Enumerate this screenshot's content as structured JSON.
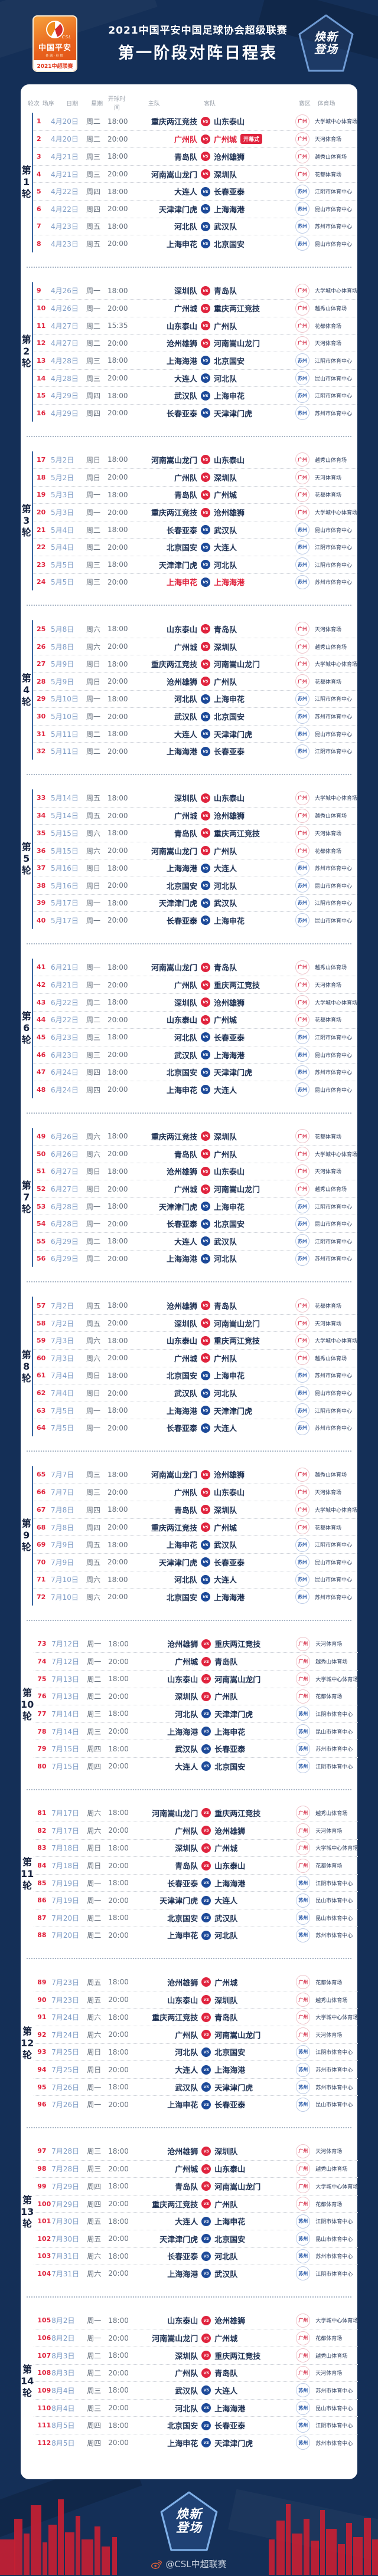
{
  "header": {
    "title_line1": "2021中国平安中国足球协会超级联赛",
    "title_line2": "第一阶段对阵日程表",
    "logo": {
      "csl": "CSL",
      "name": "中国平安",
      "tagline": "金融·科技",
      "strip": "2021中超联赛"
    },
    "badge_line1": "焕新",
    "badge_line2": "登场"
  },
  "table": {
    "columns": [
      "轮次",
      "场序",
      "日期",
      "星期",
      "开球时间",
      "主队",
      "客队",
      "赛区",
      "体育场"
    ],
    "round_prefix": "第",
    "round_suffix": "轮",
    "opening_badge": "开幕式",
    "vs_label": "VS",
    "zone_colors": {
      "广州": "#e0243e",
      "苏州": "#1d4a99"
    }
  },
  "match_fields": [
    "no",
    "date",
    "week",
    "time",
    "home",
    "away",
    "zone",
    "stadium",
    "flag"
  ],
  "rounds": [
    {
      "num": "1",
      "matches": [
        [
          "1",
          "4月20日",
          "周二",
          "18:00",
          "重庆两江竞技",
          "山东泰山",
          "广州",
          "大学城中心体育场"
        ],
        [
          "2",
          "4月20日",
          "周二",
          "20:00",
          "广州队",
          "广州城",
          "广州",
          "天河体育场",
          "open"
        ],
        [
          "3",
          "4月21日",
          "周三",
          "18:00",
          "青岛队",
          "沧州雄狮",
          "广州",
          "越秀山体育场"
        ],
        [
          "4",
          "4月21日",
          "周三",
          "20:00",
          "河南嵩山龙门",
          "深圳队",
          "广州",
          "花都体育场"
        ],
        [
          "5",
          "4月22日",
          "周四",
          "18:00",
          "大连人",
          "长春亚泰",
          "苏州",
          "江阴市体育中心"
        ],
        [
          "6",
          "4月22日",
          "周四",
          "20:00",
          "天津津门虎",
          "上海海港",
          "苏州",
          "昆山市体育中心"
        ],
        [
          "7",
          "4月23日",
          "周五",
          "18:00",
          "河北队",
          "武汉队",
          "苏州",
          "苏州市体育中心"
        ],
        [
          "8",
          "4月23日",
          "周五",
          "20:00",
          "上海申花",
          "北京国安",
          "苏州",
          "昆山市体育中心"
        ]
      ]
    },
    {
      "num": "2",
      "matches": [
        [
          "9",
          "4月26日",
          "周一",
          "18:00",
          "深圳队",
          "青岛队",
          "广州",
          "大学城中心体育场"
        ],
        [
          "10",
          "4月26日",
          "周一",
          "20:00",
          "广州城",
          "重庆两江竞技",
          "广州",
          "越秀山体育场"
        ],
        [
          "11",
          "4月27日",
          "周二",
          "15:35",
          "山东泰山",
          "广州队",
          "广州",
          "花都体育场"
        ],
        [
          "12",
          "4月27日",
          "周二",
          "20:00",
          "沧州雄狮",
          "河南嵩山龙门",
          "广州",
          "天河体育场"
        ],
        [
          "13",
          "4月28日",
          "周三",
          "18:00",
          "上海海港",
          "北京国安",
          "苏州",
          "江阴市体育中心"
        ],
        [
          "14",
          "4月28日",
          "周三",
          "20:00",
          "大连人",
          "河北队",
          "苏州",
          "昆山市体育中心"
        ],
        [
          "15",
          "4月29日",
          "周四",
          "18:00",
          "武汉队",
          "上海申花",
          "苏州",
          "江阴市体育中心"
        ],
        [
          "16",
          "4月29日",
          "周四",
          "20:00",
          "长春亚泰",
          "天津津门虎",
          "苏州",
          "苏州市体育中心"
        ]
      ]
    },
    {
      "num": "3",
      "matches": [
        [
          "17",
          "5月2日",
          "周日",
          "18:00",
          "河南嵩山龙门",
          "山东泰山",
          "广州",
          "越秀山体育场"
        ],
        [
          "18",
          "5月2日",
          "周日",
          "20:00",
          "广州队",
          "深圳队",
          "广州",
          "天河体育场"
        ],
        [
          "19",
          "5月3日",
          "周一",
          "18:00",
          "青岛队",
          "广州城",
          "广州",
          "花都体育场"
        ],
        [
          "20",
          "5月3日",
          "周一",
          "20:00",
          "重庆两江竞技",
          "沧州雄狮",
          "广州",
          "大学城中心体育场"
        ],
        [
          "21",
          "5月4日",
          "周二",
          "18:00",
          "长春亚泰",
          "武汉队",
          "苏州",
          "昆山市体育中心"
        ],
        [
          "22",
          "5月4日",
          "周二",
          "20:00",
          "北京国安",
          "大连人",
          "苏州",
          "江阴市体育中心"
        ],
        [
          "23",
          "5月5日",
          "周三",
          "18:00",
          "天津津门虎",
          "河北队",
          "苏州",
          "江阴市体育中心"
        ],
        [
          "24",
          "5月5日",
          "周三",
          "20:00",
          "上海申花",
          "上海海港",
          "苏州",
          "苏州市体育中心",
          "hl"
        ]
      ]
    },
    {
      "num": "4",
      "matches": [
        [
          "25",
          "5月8日",
          "周六",
          "18:00",
          "山东泰山",
          "青岛队",
          "广州",
          "天河体育场"
        ],
        [
          "26",
          "5月8日",
          "周六",
          "20:00",
          "广州城",
          "深圳队",
          "广州",
          "越秀山体育场"
        ],
        [
          "27",
          "5月9日",
          "周日",
          "18:00",
          "重庆两江竞技",
          "河南嵩山龙门",
          "广州",
          "大学城中心体育场"
        ],
        [
          "28",
          "5月9日",
          "周日",
          "20:00",
          "沧州雄狮",
          "广州队",
          "广州",
          "花都体育场"
        ],
        [
          "29",
          "5月10日",
          "周一",
          "18:00",
          "河北队",
          "上海申花",
          "苏州",
          "江阴市体育中心"
        ],
        [
          "30",
          "5月10日",
          "周一",
          "20:00",
          "武汉队",
          "北京国安",
          "苏州",
          "苏州市体育中心"
        ],
        [
          "31",
          "5月11日",
          "周二",
          "18:00",
          "大连人",
          "天津津门虎",
          "苏州",
          "昆山市体育中心"
        ],
        [
          "32",
          "5月11日",
          "周二",
          "20:00",
          "上海海港",
          "长春亚泰",
          "苏州",
          "江阴市体育中心"
        ]
      ]
    },
    {
      "num": "5",
      "matches": [
        [
          "33",
          "5月14日",
          "周五",
          "18:00",
          "深圳队",
          "山东泰山",
          "广州",
          "大学城中心体育场"
        ],
        [
          "34",
          "5月14日",
          "周五",
          "20:00",
          "广州城",
          "沧州雄狮",
          "广州",
          "越秀山体育场"
        ],
        [
          "35",
          "5月15日",
          "周六",
          "18:00",
          "青岛队",
          "重庆两江竞技",
          "广州",
          "天河体育场"
        ],
        [
          "36",
          "5月15日",
          "周六",
          "20:00",
          "河南嵩山龙门",
          "广州队",
          "广州",
          "花都体育场"
        ],
        [
          "37",
          "5月16日",
          "周日",
          "18:00",
          "上海海港",
          "大连人",
          "苏州",
          "苏州市体育中心"
        ],
        [
          "38",
          "5月16日",
          "周日",
          "20:00",
          "北京国安",
          "河北队",
          "苏州",
          "昆山市体育中心"
        ],
        [
          "39",
          "5月17日",
          "周一",
          "18:00",
          "天津津门虎",
          "武汉队",
          "苏州",
          "江阴市体育中心"
        ],
        [
          "40",
          "5月17日",
          "周一",
          "20:00",
          "长春亚泰",
          "上海申花",
          "苏州",
          "昆山市体育中心"
        ]
      ]
    },
    {
      "num": "6",
      "matches": [
        [
          "41",
          "6月21日",
          "周一",
          "18:00",
          "河南嵩山龙门",
          "青岛队",
          "广州",
          "越秀山体育场"
        ],
        [
          "42",
          "6月21日",
          "周一",
          "20:00",
          "广州队",
          "重庆两江竞技",
          "广州",
          "天河体育场"
        ],
        [
          "43",
          "6月22日",
          "周二",
          "18:00",
          "深圳队",
          "沧州雄狮",
          "广州",
          "大学城中心体育场"
        ],
        [
          "44",
          "6月22日",
          "周二",
          "20:00",
          "山东泰山",
          "广州城",
          "广州",
          "花都体育场"
        ],
        [
          "45",
          "6月23日",
          "周三",
          "18:00",
          "河北队",
          "长春亚泰",
          "苏州",
          "江阴市体育中心"
        ],
        [
          "46",
          "6月23日",
          "周三",
          "20:00",
          "武汉队",
          "上海海港",
          "苏州",
          "昆山市体育中心"
        ],
        [
          "47",
          "6月24日",
          "周四",
          "18:00",
          "北京国安",
          "天津津门虎",
          "苏州",
          "苏州市体育中心"
        ],
        [
          "48",
          "6月24日",
          "周四",
          "20:00",
          "上海申花",
          "大连人",
          "苏州",
          "昆山市体育中心"
        ]
      ]
    },
    {
      "num": "7",
      "matches": [
        [
          "49",
          "6月26日",
          "周六",
          "18:00",
          "重庆两江竞技",
          "深圳队",
          "广州",
          "花都体育场"
        ],
        [
          "50",
          "6月26日",
          "周六",
          "20:00",
          "青岛队",
          "广州队",
          "广州",
          "大学城中心体育场"
        ],
        [
          "51",
          "6月27日",
          "周日",
          "18:00",
          "沧州雄狮",
          "山东泰山",
          "广州",
          "天河体育场"
        ],
        [
          "52",
          "6月27日",
          "周日",
          "20:00",
          "广州城",
          "河南嵩山龙门",
          "广州",
          "越秀山体育场"
        ],
        [
          "53",
          "6月28日",
          "周一",
          "18:00",
          "天津津门虎",
          "上海申花",
          "苏州",
          "江阴市体育中心"
        ],
        [
          "54",
          "6月28日",
          "周一",
          "20:00",
          "长春亚泰",
          "北京国安",
          "苏州",
          "昆山市体育中心"
        ],
        [
          "55",
          "6月29日",
          "周二",
          "18:00",
          "大连人",
          "武汉队",
          "苏州",
          "江阴市体育中心"
        ],
        [
          "56",
          "6月29日",
          "周二",
          "20:00",
          "上海海港",
          "河北队",
          "苏州",
          "苏州市体育中心"
        ]
      ]
    },
    {
      "num": "8",
      "matches": [
        [
          "57",
          "7月2日",
          "周五",
          "18:00",
          "沧州雄狮",
          "青岛队",
          "广州",
          "花都体育场"
        ],
        [
          "58",
          "7月2日",
          "周五",
          "20:00",
          "深圳队",
          "河南嵩山龙门",
          "广州",
          "天河体育场"
        ],
        [
          "59",
          "7月3日",
          "周六",
          "18:00",
          "山东泰山",
          "重庆两江竞技",
          "广州",
          "大学城中心体育场"
        ],
        [
          "60",
          "7月3日",
          "周六",
          "20:00",
          "广州城",
          "广州队",
          "广州",
          "越秀山体育场"
        ],
        [
          "61",
          "7月4日",
          "周日",
          "18:00",
          "北京国安",
          "上海申花",
          "苏州",
          "苏州市体育中心"
        ],
        [
          "62",
          "7月4日",
          "周日",
          "20:00",
          "武汉队",
          "河北队",
          "苏州",
          "昆山市体育中心"
        ],
        [
          "63",
          "7月5日",
          "周一",
          "18:00",
          "上海海港",
          "天津津门虎",
          "苏州",
          "江阴市体育中心"
        ],
        [
          "64",
          "7月5日",
          "周一",
          "20:00",
          "长春亚泰",
          "大连人",
          "苏州",
          "苏州市体育中心"
        ]
      ]
    },
    {
      "num": "9",
      "matches": [
        [
          "65",
          "7月7日",
          "周三",
          "18:00",
          "河南嵩山龙门",
          "沧州雄狮",
          "广州",
          "越秀山体育场"
        ],
        [
          "66",
          "7月7日",
          "周三",
          "20:00",
          "广州队",
          "山东泰山",
          "广州",
          "天河体育场"
        ],
        [
          "67",
          "7月8日",
          "周四",
          "18:00",
          "青岛队",
          "深圳队",
          "广州",
          "大学城中心体育场"
        ],
        [
          "68",
          "7月8日",
          "周四",
          "20:00",
          "重庆两江竞技",
          "广州城",
          "广州",
          "花都体育场"
        ],
        [
          "69",
          "7月9日",
          "周五",
          "18:00",
          "上海申花",
          "武汉队",
          "苏州",
          "江阴市体育中心"
        ],
        [
          "70",
          "7月9日",
          "周五",
          "20:00",
          "天津津门虎",
          "长春亚泰",
          "苏州",
          "昆山市体育中心"
        ],
        [
          "71",
          "7月10日",
          "周六",
          "18:00",
          "河北队",
          "大连人",
          "苏州",
          "昆山市体育中心"
        ],
        [
          "72",
          "7月10日",
          "周六",
          "20:00",
          "北京国安",
          "上海海港",
          "苏州",
          "苏州市体育中心"
        ]
      ]
    },
    {
      "num": "10",
      "matches": [
        [
          "73",
          "7月12日",
          "周一",
          "18:00",
          "沧州雄狮",
          "重庆两江竞技",
          "广州",
          "天河体育场"
        ],
        [
          "74",
          "7月12日",
          "周一",
          "20:00",
          "广州城",
          "青岛队",
          "广州",
          "越秀山体育场"
        ],
        [
          "75",
          "7月13日",
          "周二",
          "18:00",
          "山东泰山",
          "河南嵩山龙门",
          "广州",
          "大学城中心体育场"
        ],
        [
          "76",
          "7月13日",
          "周二",
          "20:00",
          "深圳队",
          "广州队",
          "广州",
          "花都体育场"
        ],
        [
          "77",
          "7月14日",
          "周三",
          "18:00",
          "河北队",
          "天津津门虎",
          "苏州",
          "江阴市体育中心"
        ],
        [
          "78",
          "7月14日",
          "周三",
          "20:00",
          "上海海港",
          "上海申花",
          "苏州",
          "昆山市体育中心"
        ],
        [
          "79",
          "7月15日",
          "周四",
          "18:00",
          "武汉队",
          "长春亚泰",
          "苏州",
          "苏州市体育中心"
        ],
        [
          "80",
          "7月15日",
          "周四",
          "20:00",
          "大连人",
          "北京国安",
          "苏州",
          "江阴市体育中心"
        ]
      ]
    },
    {
      "num": "11",
      "matches": [
        [
          "81",
          "7月17日",
          "周六",
          "18:00",
          "河南嵩山龙门",
          "重庆两江竞技",
          "广州",
          "越秀山体育场"
        ],
        [
          "82",
          "7月17日",
          "周六",
          "20:00",
          "广州队",
          "沧州雄狮",
          "广州",
          "天河体育场"
        ],
        [
          "83",
          "7月18日",
          "周日",
          "18:00",
          "深圳队",
          "广州城",
          "广州",
          "大学城中心体育场"
        ],
        [
          "84",
          "7月18日",
          "周日",
          "20:00",
          "青岛队",
          "山东泰山",
          "广州",
          "花都体育场"
        ],
        [
          "85",
          "7月19日",
          "周一",
          "18:00",
          "长春亚泰",
          "上海海港",
          "苏州",
          "江阴市体育中心"
        ],
        [
          "86",
          "7月19日",
          "周一",
          "20:00",
          "天津津门虎",
          "大连人",
          "苏州",
          "昆山市体育中心"
        ],
        [
          "87",
          "7月20日",
          "周二",
          "18:00",
          "北京国安",
          "武汉队",
          "苏州",
          "昆山市体育中心"
        ],
        [
          "88",
          "7月20日",
          "周二",
          "20:00",
          "上海申花",
          "河北队",
          "苏州",
          "苏州市体育中心"
        ]
      ]
    },
    {
      "num": "12",
      "matches": [
        [
          "89",
          "7月23日",
          "周五",
          "18:00",
          "沧州雄狮",
          "广州城",
          "广州",
          "花都体育场"
        ],
        [
          "90",
          "7月23日",
          "周五",
          "20:00",
          "山东泰山",
          "深圳队",
          "广州",
          "越秀山体育场"
        ],
        [
          "91",
          "7月24日",
          "周六",
          "18:00",
          "重庆两江竞技",
          "青岛队",
          "广州",
          "大学城中心体育场"
        ],
        [
          "92",
          "7月24日",
          "周六",
          "20:00",
          "广州队",
          "河南嵩山龙门",
          "广州",
          "天河体育场"
        ],
        [
          "93",
          "7月25日",
          "周日",
          "18:00",
          "河北队",
          "北京国安",
          "苏州",
          "江阴市体育中心"
        ],
        [
          "94",
          "7月25日",
          "周日",
          "20:00",
          "大连人",
          "上海海港",
          "苏州",
          "苏州市体育中心"
        ],
        [
          "95",
          "7月26日",
          "周一",
          "18:00",
          "武汉队",
          "天津津门虎",
          "苏州",
          "苏州市体育中心"
        ],
        [
          "96",
          "7月26日",
          "周一",
          "20:00",
          "上海申花",
          "长春亚泰",
          "苏州",
          "昆山市体育中心"
        ]
      ]
    },
    {
      "num": "13",
      "matches": [
        [
          "97",
          "7月28日",
          "周三",
          "18:00",
          "沧州雄狮",
          "深圳队",
          "广州",
          "天河体育场"
        ],
        [
          "98",
          "7月28日",
          "周三",
          "20:00",
          "广州城",
          "山东泰山",
          "广州",
          "越秀山体育场"
        ],
        [
          "99",
          "7月29日",
          "周四",
          "18:00",
          "青岛队",
          "河南嵩山龙门",
          "广州",
          "大学城中心体育场"
        ],
        [
          "100",
          "7月29日",
          "周四",
          "20:00",
          "重庆两江竞技",
          "广州队",
          "广州",
          "花都体育场"
        ],
        [
          "101",
          "7月30日",
          "周五",
          "18:00",
          "大连人",
          "上海申花",
          "苏州",
          "江阴市体育中心"
        ],
        [
          "102",
          "7月30日",
          "周五",
          "20:00",
          "天津津门虎",
          "北京国安",
          "苏州",
          "昆山市体育中心"
        ],
        [
          "103",
          "7月31日",
          "周六",
          "18:00",
          "长春亚泰",
          "河北队",
          "苏州",
          "苏州市体育中心"
        ],
        [
          "104",
          "7月31日",
          "周六",
          "20:00",
          "上海海港",
          "武汉队",
          "苏州",
          "江阴市体育中心"
        ]
      ]
    },
    {
      "num": "14",
      "matches": [
        [
          "105",
          "8月2日",
          "周一",
          "18:00",
          "山东泰山",
          "沧州雄狮",
          "广州",
          "大学城中心体育场"
        ],
        [
          "106",
          "8月2日",
          "周一",
          "20:00",
          "河南嵩山龙门",
          "广州城",
          "广州",
          "花都体育场"
        ],
        [
          "107",
          "8月3日",
          "周二",
          "18:00",
          "深圳队",
          "重庆两江竞技",
          "广州",
          "越秀山体育场"
        ],
        [
          "108",
          "8月3日",
          "周二",
          "20:00",
          "广州队",
          "青岛队",
          "广州",
          "天河体育场"
        ],
        [
          "109",
          "8月4日",
          "周三",
          "18:00",
          "武汉队",
          "大连人",
          "苏州",
          "苏州市体育中心"
        ],
        [
          "110",
          "8月4日",
          "周三",
          "20:00",
          "河北队",
          "上海海港",
          "苏州",
          "昆山市体育中心"
        ],
        [
          "111",
          "8月5日",
          "周四",
          "18:00",
          "北京国安",
          "长春亚泰",
          "苏州",
          "江阴市体育中心"
        ],
        [
          "112",
          "8月5日",
          "周四",
          "20:00",
          "上海申花",
          "天津津门虎",
          "苏州",
          "苏州市体育中心"
        ]
      ]
    }
  ],
  "footer": {
    "badge_line1": "焕新",
    "badge_line2": "登场",
    "weibo_handle": "@CSL中超联赛"
  }
}
